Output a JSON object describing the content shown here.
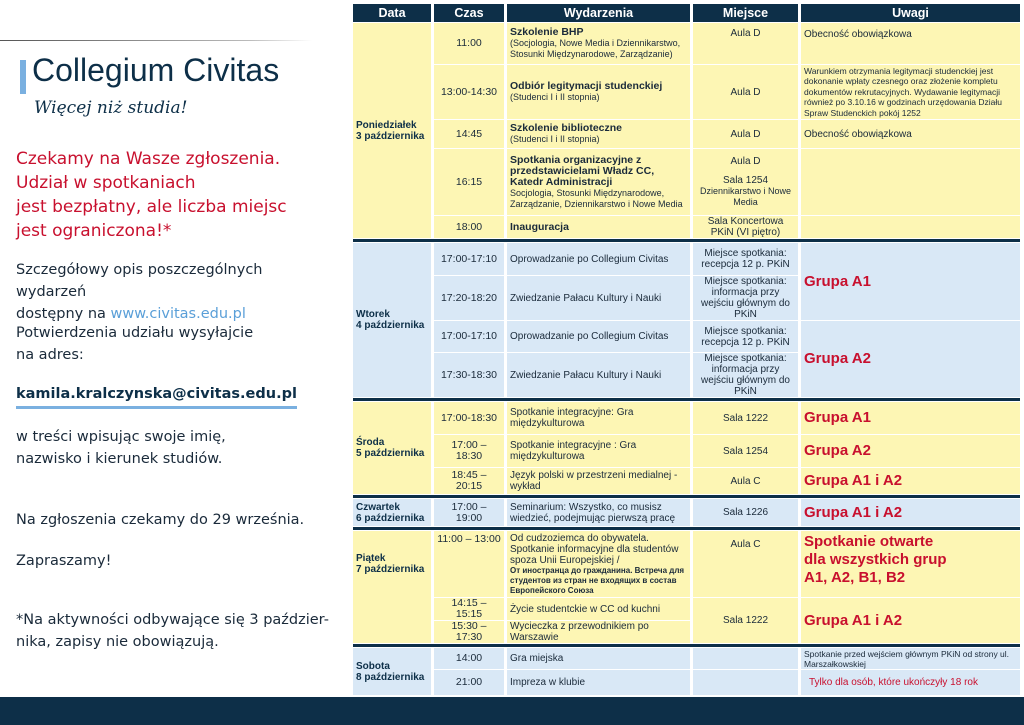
{
  "brand": {
    "name": "Collegium Civitas",
    "tagline": "Więcej niż studia!"
  },
  "left": {
    "invite": [
      "Czekamy na Wasze zgłoszenia.",
      "Udział w spotkaniach",
      "jest bezpłatny, ale liczba miejsc",
      "jest ograniczona!*"
    ],
    "details_1": "Szczegółowy opis poszczególnych wydarzeń",
    "details_2": "dostępny na",
    "details_link": "www.civitas.edu.pl",
    "confirm_1": "Potwierdzenia udziału wysyłajcie",
    "confirm_2": "na adres:",
    "email": "kamila.kralczynska@civitas.edu.pl",
    "content_1": "w treści wpisując swoje imię,",
    "content_2": "nazwisko i kierunek studiów.",
    "deadline": "Na zgłoszenia czekamy do 29 września.",
    "welcome": "Zapraszamy!",
    "footnote_1": "*Na aktywności odbywające się 3 paździer-",
    "footnote_2": "nika, zapisy nie obowiązują."
  },
  "table": {
    "headers": [
      "Data",
      "Czas",
      "Wydarzenia",
      "Miejsce",
      "Uwagi"
    ],
    "mon": {
      "day": "Poniedziałek",
      "date": "3 października",
      "r1": {
        "time": "11:00",
        "title": "Szkolenie BHP",
        "sub": "(Socjologia, Nowe Media i Dziennikarstwo, Stosunki Międzynarodowe, Zarządzanie)",
        "place": "Aula D",
        "note": "Obecność obowiązkowa"
      },
      "r2": {
        "time": "13:00-14:30",
        "title": "Odbiór legitymacji studenckiej",
        "sub": "(Studenci I i II stopnia)",
        "place": "Aula D",
        "note": "Warunkiem otrzymania legitymacji studenckiej jest dokonanie wpłaty czesnego oraz złożenie kompletu dokumentów rekrutacyjnych. Wydawanie legitymacji również po 3.10.16 w godzinach urzędowania Działu Spraw Studenckich pokój 1252"
      },
      "r3": {
        "time": "14:45",
        "title": "Szkolenie biblioteczne",
        "sub": "(Studenci I i II stopnia)",
        "place": "Aula D",
        "note": "Obecność obowiązkowa"
      },
      "r4": {
        "time": "16:15",
        "title": "Spotkania organizacyjne z przedstawicielami Władz CC, Katedr Administracji",
        "sub": "Socjologia, Stosunki Międzynarodowe, Zarządzanie, Dziennikarstwo i Nowe Media",
        "place_1": "Aula D",
        "place_2": "Sala 1254",
        "place_3": "Dziennikarstwo i Nowe Media"
      },
      "r5": {
        "time": "18:00",
        "title": "Inauguracja",
        "place": "Sala Koncertowa PKiN (VI piętro)"
      }
    },
    "tue": {
      "day": "Wtorek",
      "date": "4 października",
      "r1": {
        "time": "17:00-17:10",
        "event": "Oprowadzanie po Collegium Civitas",
        "place": "Miejsce spotkania: recepcja 12 p. PKiN"
      },
      "r2": {
        "time": "17:20-18:20",
        "event": "Zwiedzanie Pałacu Kultury i Nauki",
        "place": "Miejsce spotkania: informacja przy wejściu głównym do PKiN"
      },
      "r3": {
        "time": "17:00-17:10",
        "event": "Oprowadzanie po Collegium Civitas",
        "place": "Miejsce spotkania: recepcja 12 p. PKiN"
      },
      "r4": {
        "time": "17:30-18:30",
        "event": "Zwiedzanie Pałacu Kultury i Nauki",
        "place": "Miejsce spotkania: informacja przy wejściu głównym do PKiN"
      },
      "group_1": "Grupa A1",
      "group_2": "Grupa A2"
    },
    "wed": {
      "day": "Środa",
      "date": "5 października",
      "r1": {
        "time": "17:00-18:30",
        "event": "Spotkanie integracyjne: Gra międzykulturowa",
        "place": "Sala 1222",
        "note": "Grupa A1"
      },
      "r2": {
        "time": "17:00 – 18:30",
        "event": "Spotkanie integracyjne : Gra międzykulturowa",
        "place": "Sala 1254",
        "note": "Grupa A2"
      },
      "r3": {
        "time": "18:45 – 20:15",
        "event": "Język polski w przestrzeni medialnej - wykład",
        "place": "Aula C",
        "note": "Grupa A1 i A2"
      }
    },
    "thu": {
      "day": "Czwartek",
      "date": "6 października",
      "r1": {
        "time": "17:00 – 19:00",
        "event": "Seminarium: Wszystko, co musisz wiedzieć, podejmując pierwszą pracę",
        "place": "Sala 1226",
        "note": "Grupa A1 i A2"
      }
    },
    "fri": {
      "day": "Piątek",
      "date": "7 października",
      "r1": {
        "time": "11:00 – 13:00",
        "event": "Od cudzoziemca do obywatela. Spotkanie informacyjne dla studentów spoza Unii Europejskiej /",
        "event_ru": "От иностранца до гражданина. Встреча для студентов из стран не входящих в состав Европейского Союза",
        "place": "Aula C",
        "note_1": "Spotkanie otwarte",
        "note_2": "dla wszystkich grup",
        "note_3": "A1, A2, B1, B2"
      },
      "r2": {
        "time": "14:15 – 15:15",
        "event": "Życie studentckie w CC od kuchni"
      },
      "r3": {
        "time": "15:30 – 17:30",
        "event": "Wycieczka z przewodnikiem po Warszawie"
      },
      "place_23": "Sala 1222",
      "note_23": "Grupa A1 i A2"
    },
    "sat": {
      "day": "Sobota",
      "date": "8 października",
      "r1": {
        "time": "14:00",
        "event": "Gra miejska",
        "note": "Spotkanie przed wejściem głównym PKiN od strony ul. Marszałkowskiej"
      },
      "r2": {
        "time": "21:00",
        "event": "Impreza w klubie",
        "note": "Tylko dla osób, które ukończyły 18 rok"
      }
    }
  },
  "colors": {
    "navy": "#0d2f48",
    "accent_red": "#c8102e",
    "link_blue": "#5a9fd8",
    "row_yellow": "#fdf6b4",
    "row_blue": "#d9e8f6"
  }
}
